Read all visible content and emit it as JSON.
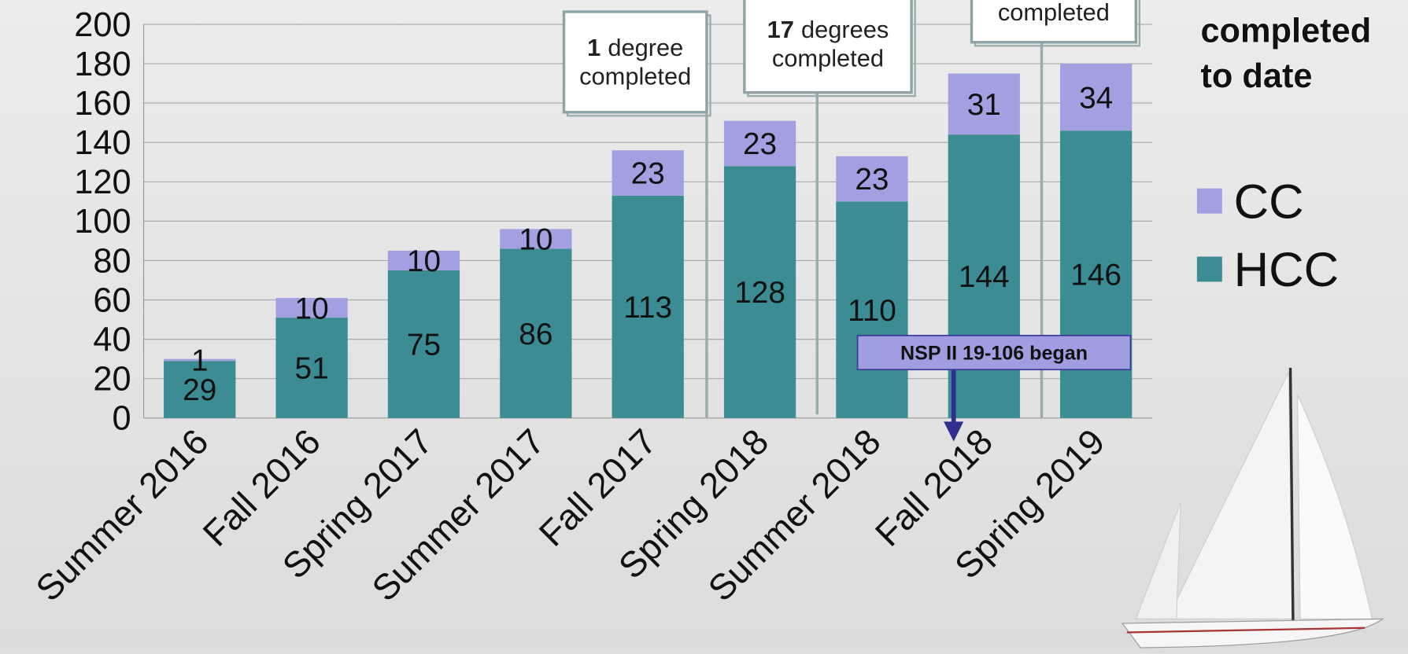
{
  "chart_data": {
    "type": "stacked_bar",
    "categories": [
      "Summer 2016",
      "Fall 2016",
      "Spring 2017",
      "Summer 2017",
      "Fall 2017",
      "Spring 2018",
      "Summer 2018",
      "Fall 2018",
      "Spring 2019"
    ],
    "series": [
      {
        "name": "HCC",
        "color": "#3c8c93",
        "values": [
          29,
          51,
          75,
          86,
          113,
          128,
          110,
          144,
          146
        ]
      },
      {
        "name": "CC",
        "color": "#a3a0e2",
        "values": [
          1,
          10,
          10,
          10,
          23,
          23,
          23,
          31,
          34
        ]
      }
    ],
    "ylim": [
      0,
      200
    ],
    "yticks": [
      0,
      20,
      40,
      60,
      80,
      100,
      120,
      140,
      160,
      180,
      200
    ],
    "grid": true,
    "legend_title": [
      "completed",
      "to date"
    ],
    "annotations": [
      {
        "bold": "1",
        "lines": [
          "degree",
          "completed"
        ]
      },
      {
        "bold": "17",
        "lines": [
          "degrees",
          "completed"
        ]
      },
      {
        "lines": [
          "completed"
        ]
      }
    ],
    "callout": "NSP II 19-106 began"
  }
}
